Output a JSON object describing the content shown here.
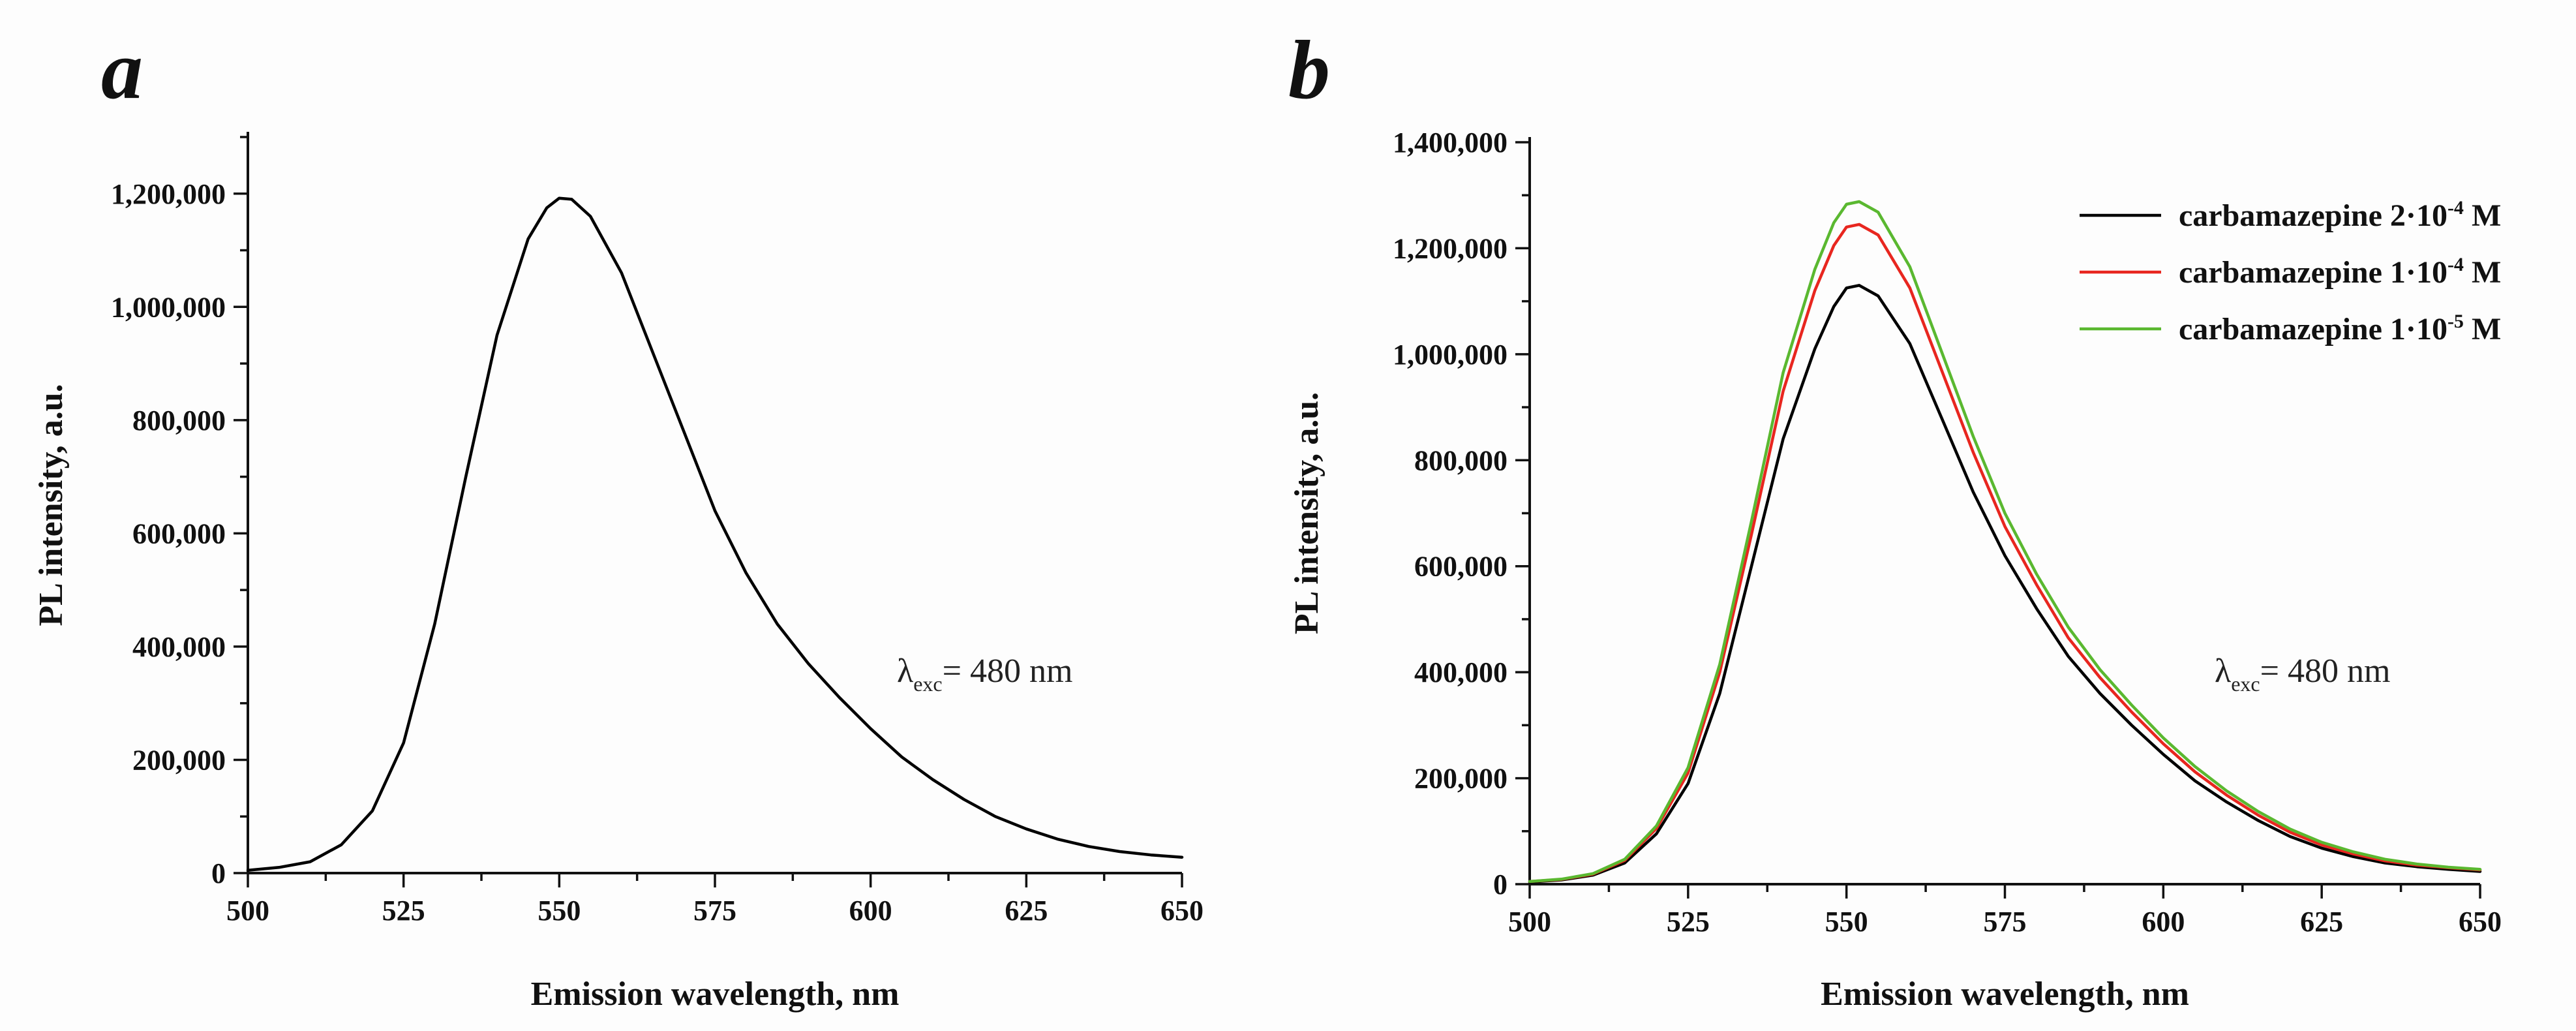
{
  "chart_data": [
    {
      "panel_label": "a",
      "type": "line",
      "xlabel": "Emission wavelength, nm",
      "ylabel": "PL intensity, a.u.",
      "xlim": [
        500,
        650
      ],
      "ylim": [
        0,
        1300000
      ],
      "x_ticks": [
        500,
        525,
        550,
        575,
        600,
        625,
        650
      ],
      "x_tick_labels": [
        "500",
        "525",
        "550",
        "575",
        "600",
        "625",
        "650"
      ],
      "y_ticks": [
        0,
        200000,
        400000,
        600000,
        800000,
        1000000,
        1200000
      ],
      "y_tick_labels": [
        "0",
        "200,000",
        "400,000",
        "600,000",
        "800,000",
        "1,000,000",
        "1,200,000"
      ],
      "annotation": {
        "symbol": "λ",
        "subscript": "exc",
        "text": "= 480 nm"
      },
      "series": [
        {
          "name": "",
          "color": "#000000",
          "x": [
            500,
            505,
            510,
            515,
            520,
            525,
            530,
            535,
            540,
            545,
            548,
            550,
            552,
            555,
            560,
            565,
            570,
            575,
            580,
            585,
            590,
            595,
            600,
            605,
            610,
            615,
            620,
            625,
            630,
            635,
            640,
            645,
            650
          ],
          "y": [
            5000,
            10000,
            20000,
            50000,
            110000,
            230000,
            440000,
            700000,
            950000,
            1120000,
            1175000,
            1192000,
            1190000,
            1160000,
            1060000,
            920000,
            780000,
            640000,
            530000,
            440000,
            370000,
            310000,
            255000,
            205000,
            165000,
            130000,
            100000,
            78000,
            60000,
            47000,
            38000,
            32000,
            28000
          ]
        }
      ]
    },
    {
      "panel_label": "b",
      "type": "line",
      "xlabel": "Emission wavelength, nm",
      "ylabel": "PL intensity, a.u.",
      "xlim": [
        500,
        650
      ],
      "ylim": [
        0,
        1400000
      ],
      "x_ticks": [
        500,
        525,
        550,
        575,
        600,
        625,
        650
      ],
      "x_tick_labels": [
        "500",
        "525",
        "550",
        "575",
        "600",
        "625",
        "650"
      ],
      "y_ticks": [
        0,
        200000,
        400000,
        600000,
        800000,
        1000000,
        1200000,
        1400000
      ],
      "y_tick_labels": [
        "0",
        "200,000",
        "400,000",
        "600,000",
        "800,000",
        "1,000,000",
        "1,200,000",
        "1,400,000"
      ],
      "annotation": {
        "symbol": "λ",
        "subscript": "exc",
        "text": "= 480 nm"
      },
      "legend_position": "top-right",
      "series": [
        {
          "name": "carbamazepine 2·10",
          "exp": "-4",
          "unit": " M",
          "color": "#000000",
          "x": [
            500,
            505,
            510,
            515,
            520,
            525,
            530,
            535,
            540,
            545,
            548,
            550,
            552,
            555,
            560,
            565,
            570,
            575,
            580,
            585,
            590,
            595,
            600,
            605,
            610,
            615,
            620,
            625,
            630,
            635,
            640,
            645,
            650
          ],
          "y": [
            4000,
            8000,
            17000,
            40000,
            95000,
            190000,
            360000,
            600000,
            840000,
            1010000,
            1090000,
            1125000,
            1130000,
            1110000,
            1020000,
            880000,
            740000,
            620000,
            520000,
            430000,
            360000,
            300000,
            245000,
            195000,
            155000,
            120000,
            90000,
            68000,
            52000,
            40000,
            33000,
            28000,
            24000
          ]
        },
        {
          "name": "carbamazepine 1·10",
          "exp": "-4",
          "unit": " M",
          "color": "#e8261f",
          "x": [
            500,
            505,
            510,
            515,
            520,
            525,
            530,
            535,
            540,
            545,
            548,
            550,
            552,
            555,
            560,
            565,
            570,
            575,
            580,
            585,
            590,
            595,
            600,
            605,
            610,
            615,
            620,
            625,
            630,
            635,
            640,
            645,
            650
          ],
          "y": [
            5000,
            9000,
            19000,
            45000,
            105000,
            210000,
            400000,
            660000,
            930000,
            1120000,
            1205000,
            1240000,
            1245000,
            1225000,
            1125000,
            970000,
            815000,
            675000,
            565000,
            465000,
            390000,
            325000,
            265000,
            212000,
            168000,
            130000,
            98000,
            74000,
            57000,
            44000,
            36000,
            31000,
            27000
          ]
        },
        {
          "name": "carbamazepine 1·10",
          "exp": "-5",
          "unit": " M",
          "color": "#5ab830",
          "x": [
            500,
            505,
            510,
            515,
            520,
            525,
            530,
            535,
            540,
            545,
            548,
            550,
            552,
            555,
            560,
            565,
            570,
            575,
            580,
            585,
            590,
            595,
            600,
            605,
            610,
            615,
            620,
            625,
            630,
            635,
            640,
            645,
            650
          ],
          "y": [
            5000,
            9500,
            20000,
            47000,
            110000,
            220000,
            415000,
            685000,
            965000,
            1160000,
            1248000,
            1283000,
            1288000,
            1268000,
            1165000,
            1005000,
            845000,
            700000,
            585000,
            485000,
            405000,
            338000,
            276000,
            222000,
            176000,
            137000,
            104000,
            79000,
            61000,
            47000,
            38000,
            32000,
            28000
          ]
        }
      ]
    }
  ]
}
